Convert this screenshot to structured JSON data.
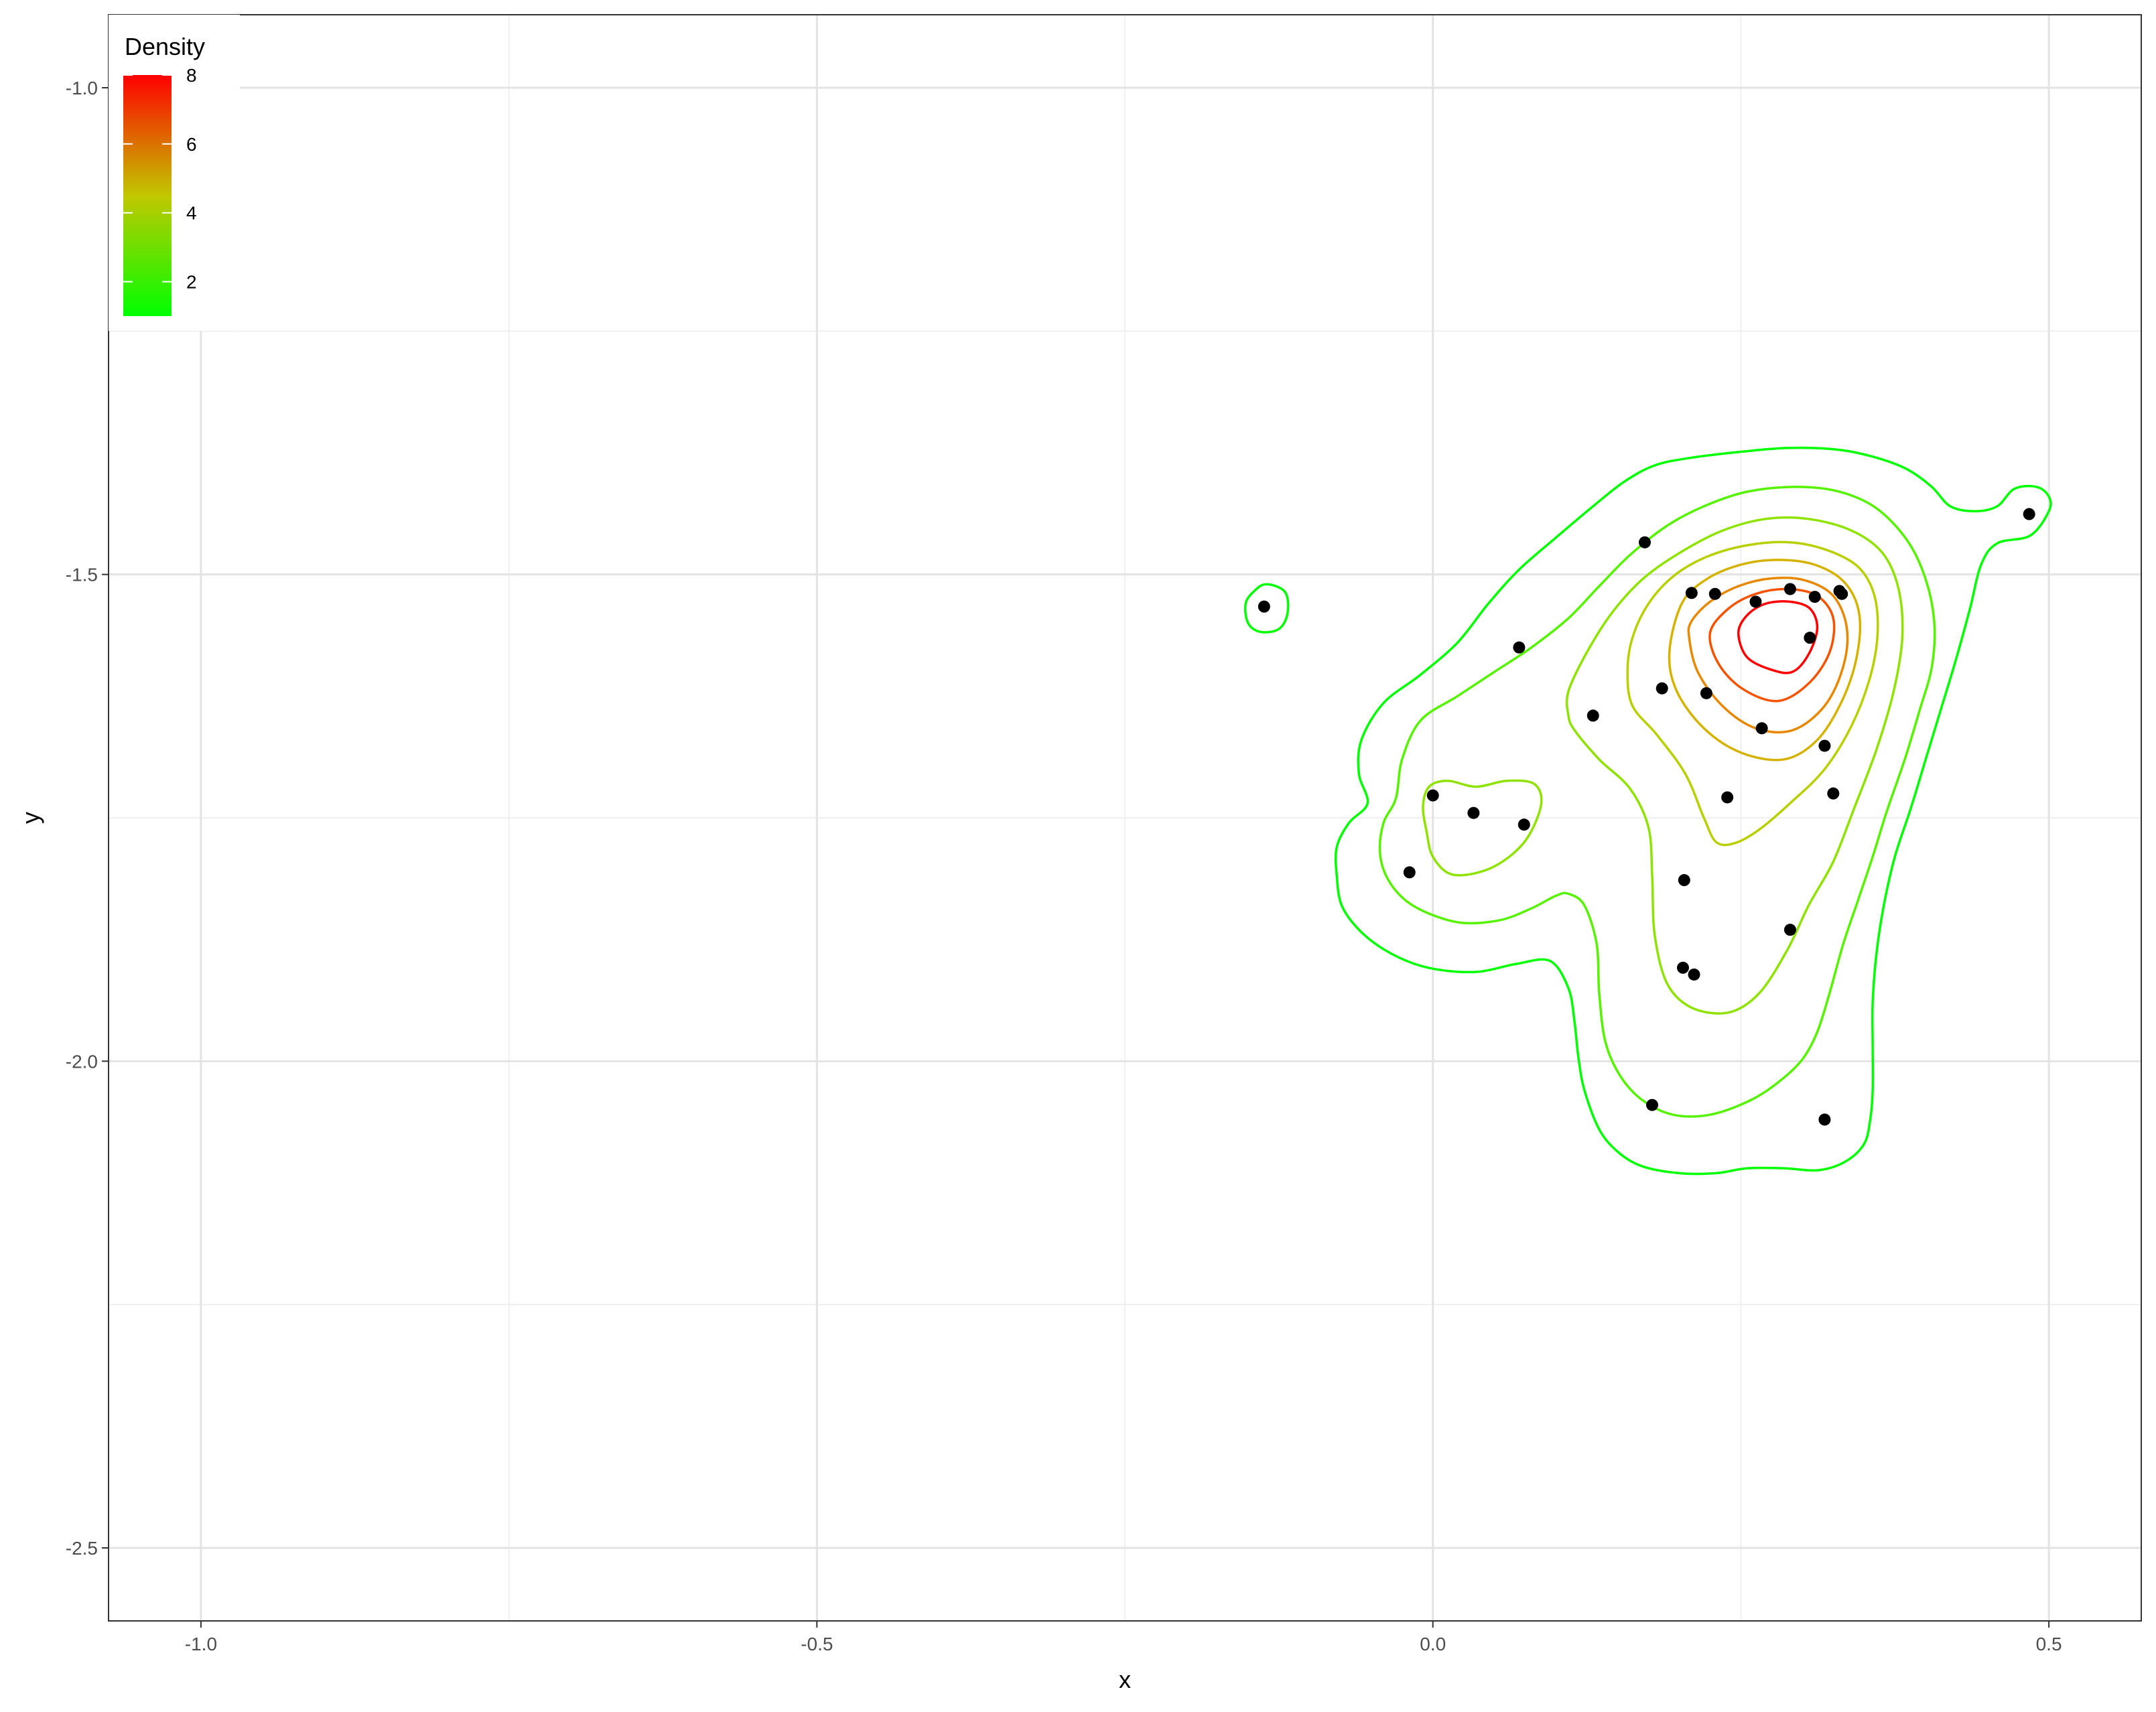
{
  "chart_data": {
    "type": "contour",
    "xlabel": "x",
    "ylabel": "y",
    "xlim": [
      -1.075,
      0.575
    ],
    "ylim": [
      -2.575,
      -0.925
    ],
    "x_ticks": [
      -1.0,
      -0.5,
      0.0,
      0.5
    ],
    "x_tick_labels": [
      "-1.0",
      "-0.5",
      "0.0",
      "0.5"
    ],
    "y_ticks": [
      -2.5,
      -2.0,
      -1.5,
      -1.0
    ],
    "y_tick_labels": [
      "-2.5",
      "-2.0",
      "-1.5",
      "-1.0"
    ],
    "grid": true,
    "legend": {
      "title": "Density",
      "position": "top-left",
      "range": [
        1,
        8
      ],
      "ticks": [
        2,
        4,
        6,
        8
      ],
      "tick_labels": [
        "2",
        "4",
        "6",
        "8"
      ],
      "color_low": "#00ff00",
      "color_high": "#ff0000"
    },
    "points": [
      [
        -0.137,
        -1.533
      ],
      [
        0.07,
        -1.575
      ],
      [
        0.172,
        -1.467
      ],
      [
        0.21,
        -1.519
      ],
      [
        0.229,
        -1.52
      ],
      [
        0.262,
        -1.528
      ],
      [
        0.29,
        -1.515
      ],
      [
        0.31,
        -1.523
      ],
      [
        0.33,
        -1.517
      ],
      [
        0.332,
        -1.52
      ],
      [
        0.306,
        -1.565
      ],
      [
        0.186,
        -1.617
      ],
      [
        0.222,
        -1.622
      ],
      [
        0.13,
        -1.645
      ],
      [
        0.267,
        -1.658
      ],
      [
        0.318,
        -1.676
      ],
      [
        0.239,
        -1.729
      ],
      [
        0.325,
        -1.725
      ],
      [
        0.0,
        -1.727
      ],
      [
        0.033,
        -1.745
      ],
      [
        0.074,
        -1.757
      ],
      [
        -0.019,
        -1.806
      ],
      [
        0.204,
        -1.814
      ],
      [
        0.29,
        -1.865
      ],
      [
        0.203,
        -1.904
      ],
      [
        0.212,
        -1.911
      ],
      [
        0.178,
        -2.045
      ],
      [
        0.318,
        -2.06
      ],
      [
        0.484,
        -1.438
      ]
    ],
    "contours": [
      {
        "level": 1,
        "color": "#00ff00",
        "path": [
          [
            -0.053,
            -1.735
          ],
          [
            -0.068,
            -1.755
          ],
          [
            -0.078,
            -1.78
          ],
          [
            -0.078,
            -1.81
          ],
          [
            -0.074,
            -1.84
          ],
          [
            -0.06,
            -1.865
          ],
          [
            -0.04,
            -1.885
          ],
          [
            -0.015,
            -1.9
          ],
          [
            0.01,
            -1.907
          ],
          [
            0.038,
            -1.908
          ],
          [
            0.068,
            -1.9
          ],
          [
            0.095,
            -1.897
          ],
          [
            0.11,
            -1.925
          ],
          [
            0.115,
            -1.96
          ],
          [
            0.118,
            -1.995
          ],
          [
            0.123,
            -2.03
          ],
          [
            0.135,
            -2.07
          ],
          [
            0.15,
            -2.093
          ],
          [
            0.17,
            -2.108
          ],
          [
            0.2,
            -2.115
          ],
          [
            0.23,
            -2.115
          ],
          [
            0.255,
            -2.11
          ],
          [
            0.285,
            -2.11
          ],
          [
            0.313,
            -2.112
          ],
          [
            0.335,
            -2.103
          ],
          [
            0.35,
            -2.085
          ],
          [
            0.355,
            -2.06
          ],
          [
            0.357,
            -2.03
          ],
          [
            0.357,
            -1.985
          ],
          [
            0.357,
            -1.94
          ],
          [
            0.36,
            -1.89
          ],
          [
            0.366,
            -1.84
          ],
          [
            0.375,
            -1.79
          ],
          [
            0.388,
            -1.74
          ],
          [
            0.4,
            -1.69
          ],
          [
            0.412,
            -1.64
          ],
          [
            0.424,
            -1.59
          ],
          [
            0.436,
            -1.535
          ],
          [
            0.445,
            -1.49
          ],
          [
            0.458,
            -1.468
          ],
          [
            0.485,
            -1.46
          ],
          [
            0.5,
            -1.435
          ],
          [
            0.5,
            -1.42
          ],
          [
            0.49,
            -1.41
          ],
          [
            0.472,
            -1.412
          ],
          [
            0.458,
            -1.43
          ],
          [
            0.44,
            -1.435
          ],
          [
            0.42,
            -1.43
          ],
          [
            0.405,
            -1.41
          ],
          [
            0.385,
            -1.392
          ],
          [
            0.36,
            -1.38
          ],
          [
            0.33,
            -1.372
          ],
          [
            0.29,
            -1.37
          ],
          [
            0.25,
            -1.374
          ],
          [
            0.21,
            -1.38
          ],
          [
            0.18,
            -1.388
          ],
          [
            0.155,
            -1.405
          ],
          [
            0.13,
            -1.43
          ],
          [
            0.1,
            -1.462
          ],
          [
            0.07,
            -1.495
          ],
          [
            0.045,
            -1.53
          ],
          [
            0.02,
            -1.57
          ],
          [
            -0.01,
            -1.603
          ],
          [
            -0.04,
            -1.632
          ],
          [
            -0.058,
            -1.67
          ],
          [
            -0.06,
            -1.705
          ],
          [
            -0.053,
            -1.735
          ]
        ]
      },
      {
        "level": 1,
        "color": "#00ff00",
        "path": [
          [
            -0.135,
            -1.51
          ],
          [
            -0.12,
            -1.518
          ],
          [
            -0.118,
            -1.54
          ],
          [
            -0.125,
            -1.556
          ],
          [
            -0.14,
            -1.559
          ],
          [
            -0.15,
            -1.55
          ],
          [
            -0.152,
            -1.53
          ],
          [
            -0.145,
            -1.517
          ],
          [
            -0.135,
            -1.51
          ]
        ]
      },
      {
        "level": 2,
        "color": "#55f300",
        "path": [
          [
            -0.03,
            -1.73
          ],
          [
            -0.04,
            -1.755
          ],
          [
            -0.043,
            -1.785
          ],
          [
            -0.037,
            -1.812
          ],
          [
            -0.022,
            -1.835
          ],
          [
            0.0,
            -1.85
          ],
          [
            0.025,
            -1.858
          ],
          [
            0.055,
            -1.855
          ],
          [
            0.08,
            -1.843
          ],
          [
            0.1,
            -1.83
          ],
          [
            0.11,
            -1.828
          ],
          [
            0.123,
            -1.84
          ],
          [
            0.133,
            -1.88
          ],
          [
            0.135,
            -1.93
          ],
          [
            0.14,
            -1.98
          ],
          [
            0.152,
            -2.015
          ],
          [
            0.17,
            -2.04
          ],
          [
            0.195,
            -2.055
          ],
          [
            0.225,
            -2.055
          ],
          [
            0.258,
            -2.04
          ],
          [
            0.282,
            -2.02
          ],
          [
            0.3,
            -1.998
          ],
          [
            0.312,
            -1.97
          ],
          [
            0.322,
            -1.93
          ],
          [
            0.333,
            -1.88
          ],
          [
            0.345,
            -1.835
          ],
          [
            0.357,
            -1.79
          ],
          [
            0.368,
            -1.745
          ],
          [
            0.383,
            -1.69
          ],
          [
            0.395,
            -1.64
          ],
          [
            0.405,
            -1.595
          ],
          [
            0.407,
            -1.55
          ],
          [
            0.4,
            -1.505
          ],
          [
            0.385,
            -1.465
          ],
          [
            0.36,
            -1.432
          ],
          [
            0.33,
            -1.415
          ],
          [
            0.295,
            -1.41
          ],
          [
            0.255,
            -1.415
          ],
          [
            0.22,
            -1.43
          ],
          [
            0.19,
            -1.45
          ],
          [
            0.16,
            -1.48
          ],
          [
            0.135,
            -1.512
          ],
          [
            0.11,
            -1.545
          ],
          [
            0.08,
            -1.575
          ],
          [
            0.05,
            -1.6
          ],
          [
            0.02,
            -1.625
          ],
          [
            -0.01,
            -1.65
          ],
          [
            -0.025,
            -1.69
          ],
          [
            -0.03,
            -1.73
          ]
        ]
      },
      {
        "level": 3,
        "color": "#8ee300",
        "path": [
          [
            -0.003,
            -1.718
          ],
          [
            -0.008,
            -1.738
          ],
          [
            -0.005,
            -1.765
          ],
          [
            0.0,
            -1.79
          ],
          [
            0.015,
            -1.808
          ],
          [
            0.04,
            -1.805
          ],
          [
            0.062,
            -1.79
          ],
          [
            0.078,
            -1.768
          ],
          [
            0.088,
            -1.735
          ],
          [
            0.082,
            -1.715
          ],
          [
            0.06,
            -1.712
          ],
          [
            0.035,
            -1.718
          ],
          [
            0.012,
            -1.712
          ],
          [
            -0.003,
            -1.718
          ]
        ]
      },
      {
        "level": 3,
        "color": "#8ee300",
        "path": [
          [
            0.11,
            -1.645
          ],
          [
            0.115,
            -1.66
          ],
          [
            0.135,
            -1.69
          ],
          [
            0.16,
            -1.72
          ],
          [
            0.175,
            -1.76
          ],
          [
            0.178,
            -1.81
          ],
          [
            0.18,
            -1.87
          ],
          [
            0.19,
            -1.92
          ],
          [
            0.21,
            -1.945
          ],
          [
            0.24,
            -1.95
          ],
          [
            0.265,
            -1.93
          ],
          [
            0.288,
            -1.885
          ],
          [
            0.305,
            -1.84
          ],
          [
            0.325,
            -1.795
          ],
          [
            0.342,
            -1.74
          ],
          [
            0.36,
            -1.68
          ],
          [
            0.374,
            -1.62
          ],
          [
            0.381,
            -1.565
          ],
          [
            0.378,
            -1.515
          ],
          [
            0.365,
            -1.478
          ],
          [
            0.34,
            -1.455
          ],
          [
            0.305,
            -1.443
          ],
          [
            0.27,
            -1.443
          ],
          [
            0.235,
            -1.455
          ],
          [
            0.2,
            -1.478
          ],
          [
            0.17,
            -1.505
          ],
          [
            0.145,
            -1.54
          ],
          [
            0.125,
            -1.58
          ],
          [
            0.11,
            -1.62
          ],
          [
            0.11,
            -1.645
          ]
        ]
      },
      {
        "level": 4,
        "color": "#b8cf00",
        "path": [
          [
            0.158,
            -1.6
          ],
          [
            0.162,
            -1.635
          ],
          [
            0.182,
            -1.665
          ],
          [
            0.205,
            -1.705
          ],
          [
            0.22,
            -1.75
          ],
          [
            0.23,
            -1.775
          ],
          [
            0.245,
            -1.776
          ],
          [
            0.265,
            -1.762
          ],
          [
            0.29,
            -1.735
          ],
          [
            0.318,
            -1.7
          ],
          [
            0.34,
            -1.655
          ],
          [
            0.355,
            -1.605
          ],
          [
            0.361,
            -1.56
          ],
          [
            0.358,
            -1.52
          ],
          [
            0.345,
            -1.492
          ],
          [
            0.32,
            -1.475
          ],
          [
            0.29,
            -1.467
          ],
          [
            0.255,
            -1.47
          ],
          [
            0.222,
            -1.482
          ],
          [
            0.195,
            -1.502
          ],
          [
            0.175,
            -1.53
          ],
          [
            0.162,
            -1.565
          ],
          [
            0.158,
            -1.6
          ]
        ]
      },
      {
        "level": 5,
        "color": "#d6b200",
        "path": [
          [
            0.192,
            -1.58
          ],
          [
            0.198,
            -1.62
          ],
          [
            0.22,
            -1.658
          ],
          [
            0.25,
            -1.683
          ],
          [
            0.285,
            -1.69
          ],
          [
            0.312,
            -1.67
          ],
          [
            0.332,
            -1.63
          ],
          [
            0.344,
            -1.585
          ],
          [
            0.346,
            -1.54
          ],
          [
            0.334,
            -1.508
          ],
          [
            0.31,
            -1.49
          ],
          [
            0.28,
            -1.485
          ],
          [
            0.25,
            -1.49
          ],
          [
            0.222,
            -1.505
          ],
          [
            0.202,
            -1.53
          ],
          [
            0.192,
            -1.58
          ]
        ]
      },
      {
        "level": 6,
        "color": "#e88800",
        "path": [
          [
            0.208,
            -1.565
          ],
          [
            0.215,
            -1.6
          ],
          [
            0.235,
            -1.635
          ],
          [
            0.262,
            -1.658
          ],
          [
            0.292,
            -1.66
          ],
          [
            0.318,
            -1.635
          ],
          [
            0.333,
            -1.595
          ],
          [
            0.336,
            -1.555
          ],
          [
            0.325,
            -1.522
          ],
          [
            0.302,
            -1.506
          ],
          [
            0.275,
            -1.504
          ],
          [
            0.248,
            -1.512
          ],
          [
            0.225,
            -1.528
          ],
          [
            0.21,
            -1.548
          ],
          [
            0.208,
            -1.565
          ]
        ]
      },
      {
        "level": 7,
        "color": "#f55300",
        "path": [
          [
            0.225,
            -1.56
          ],
          [
            0.232,
            -1.592
          ],
          [
            0.252,
            -1.618
          ],
          [
            0.28,
            -1.63
          ],
          [
            0.305,
            -1.612
          ],
          [
            0.322,
            -1.58
          ],
          [
            0.325,
            -1.545
          ],
          [
            0.312,
            -1.522
          ],
          [
            0.288,
            -1.515
          ],
          [
            0.262,
            -1.52
          ],
          [
            0.24,
            -1.535
          ],
          [
            0.225,
            -1.56
          ]
        ]
      },
      {
        "level": 8,
        "color": "#ff0000",
        "path": [
          [
            0.248,
            -1.56
          ],
          [
            0.255,
            -1.585
          ],
          [
            0.275,
            -1.598
          ],
          [
            0.292,
            -1.6
          ],
          [
            0.305,
            -1.582
          ],
          [
            0.312,
            -1.555
          ],
          [
            0.306,
            -1.535
          ],
          [
            0.29,
            -1.528
          ],
          [
            0.27,
            -1.53
          ],
          [
            0.255,
            -1.542
          ],
          [
            0.248,
            -1.56
          ]
        ]
      }
    ]
  }
}
